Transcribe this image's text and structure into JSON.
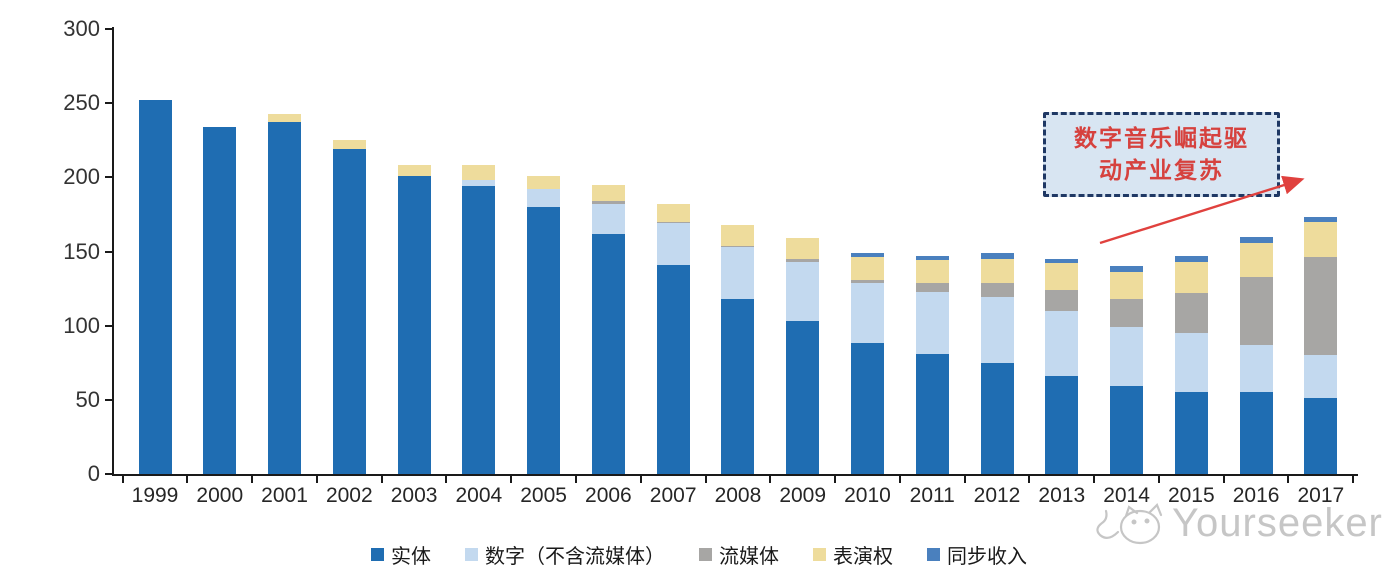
{
  "chart_data": {
    "type": "bar",
    "stacked": true,
    "title": "",
    "xlabel": "",
    "ylabel": "",
    "ylim": [
      0,
      300
    ],
    "yticks": [
      0,
      50,
      100,
      150,
      200,
      250,
      300
    ],
    "grid": false,
    "legend_position": "bottom",
    "categories": [
      "1999",
      "2000",
      "2001",
      "2002",
      "2003",
      "2004",
      "2005",
      "2006",
      "2007",
      "2008",
      "2009",
      "2010",
      "2011",
      "2012",
      "2013",
      "2014",
      "2015",
      "2016",
      "2017"
    ],
    "series": [
      {
        "name": "实体",
        "color": "#1F6DB2",
        "values": [
          252,
          234,
          237,
          219,
          201,
          194,
          180,
          162,
          141,
          118,
          103,
          88,
          81,
          75,
          66,
          59,
          55,
          55,
          51
        ]
      },
      {
        "name": "数字（不含流媒体）",
        "color": "#C3D9EF",
        "values": [
          0,
          0,
          0,
          0,
          0,
          4,
          12,
          20,
          28,
          35,
          40,
          41,
          42,
          44,
          44,
          40,
          40,
          32,
          29
        ]
      },
      {
        "name": "流媒体",
        "color": "#A7A6A4",
        "values": [
          0,
          0,
          0,
          0,
          0,
          0,
          0,
          2,
          1,
          1,
          2,
          2,
          6,
          10,
          14,
          19,
          27,
          46,
          66
        ]
      },
      {
        "name": "表演权",
        "color": "#EEDC9C",
        "values": [
          0,
          0,
          6,
          6,
          7,
          10,
          9,
          11,
          12,
          14,
          14,
          15,
          15,
          16,
          18,
          18,
          21,
          23,
          24
        ]
      },
      {
        "name": "同步收入",
        "color": "#4A80BE",
        "values": [
          0,
          0,
          0,
          0,
          0,
          0,
          0,
          0,
          0,
          0,
          0,
          3,
          3,
          4,
          3,
          4,
          4,
          4,
          3
        ]
      }
    ]
  },
  "annotation": {
    "line1": "数字音乐崛起驱",
    "line2": "动产业复苏",
    "text_color": "#D6413E",
    "box_fill": "#D8E5F2",
    "border_color": "#1F3864",
    "arrow_color": "#E0413E"
  },
  "watermark": {
    "text": "Yourseeker",
    "color": "#C6C6C6",
    "logo": "cat-logo-icon"
  }
}
